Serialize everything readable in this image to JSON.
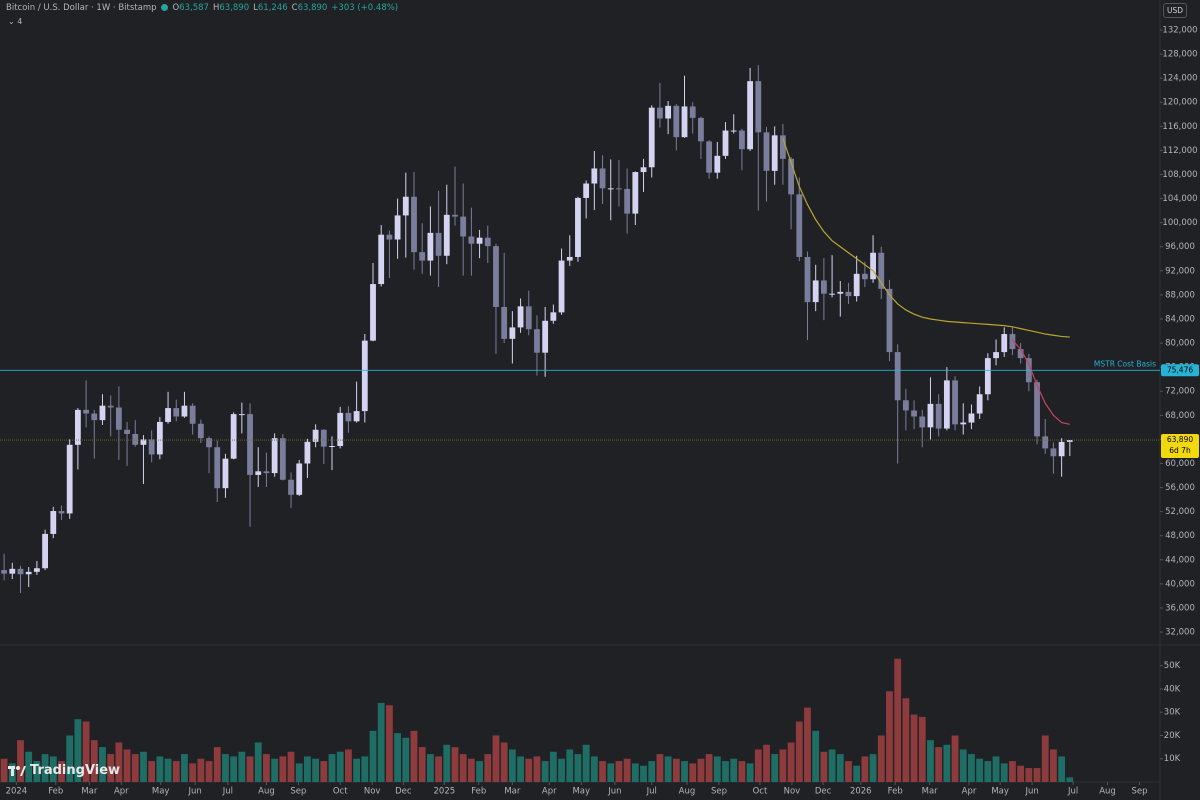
{
  "header": {
    "symbol": "Bitcoin / U.S. Dollar · 1W · Bitstamp",
    "ohlc": [
      {
        "key": "O",
        "value": "63,587"
      },
      {
        "key": "H",
        "value": "63,890"
      },
      {
        "key": "L",
        "value": "61,246"
      },
      {
        "key": "C",
        "value": "63,890"
      }
    ],
    "change": "+303 (+0.48%)",
    "indicator_count": "4",
    "currency": "USD",
    "brand": "TradingView"
  },
  "chart_data": {
    "type": "candlestick",
    "up_color": "#d4d4f2",
    "down_color": "#7b7d9c",
    "open": [
      42300,
      41700,
      42500,
      41600,
      42000,
      42600,
      48300,
      52100,
      51700,
      63100,
      68900,
      68300,
      67200,
      69600,
      69300,
      65600,
      64900,
      63100,
      64000,
      61500,
      66900,
      69200,
      67800,
      69600,
      66600,
      64200,
      62700,
      55900,
      60800,
      68200,
      68200,
      58100,
      58700,
      58400,
      64200,
      57300,
      54800,
      60000,
      63600,
      65600,
      62800,
      62900,
      68400,
      67000,
      68700,
      80400,
      89800,
      98000,
      97200,
      101200,
      104300,
      95100,
      93700,
      98300,
      94500,
      101300,
      101000,
      97700,
      96500,
      97500,
      96100,
      86000,
      80700,
      82600,
      86100,
      82300,
      78400,
      83700,
      85100,
      93700,
      94300,
      104100,
      106500,
      109000,
      105700,
      105700,
      105600,
      101500,
      108400,
      109200,
      119100,
      117300,
      119400,
      114200,
      119300,
      117400,
      113500,
      108300,
      111100,
      115300,
      115300,
      112200,
      123500,
      115000,
      108600,
      114500,
      110600,
      104700,
      94300,
      86800,
      90400,
      88200,
      88200,
      88500,
      87800,
      91500,
      90600,
      95000,
      89000,
      78500,
      70500,
      68800,
      67800,
      66000,
      69900,
      65800,
      73800,
      66500,
      66800,
      68300,
      71500,
      77500,
      78500,
      81500,
      79000,
      77500,
      73500,
      64500,
      62500,
      61200,
      63587
    ],
    "high": [
      45000,
      43500,
      43000,
      42800,
      43800,
      49000,
      52800,
      53000,
      64000,
      69200,
      73800,
      68900,
      71500,
      71300,
      72800,
      66900,
      67200,
      64700,
      65500,
      67700,
      71900,
      70600,
      71900,
      70000,
      67300,
      64500,
      63800,
      61600,
      68500,
      70100,
      70000,
      62700,
      61800,
      65000,
      64900,
      58500,
      60600,
      64100,
      66500,
      65700,
      64500,
      69400,
      69500,
      73600,
      81500,
      93300,
      99600,
      98700,
      104000,
      108300,
      108400,
      99900,
      102700,
      105300,
      106300,
      109300,
      106500,
      102500,
      98800,
      99500,
      96500,
      95000,
      85300,
      87400,
      88700,
      84600,
      86000,
      86400,
      95700,
      97900,
      104300,
      107000,
      111900,
      111200,
      110500,
      110400,
      109000,
      108500,
      110600,
      119500,
      123200,
      120200,
      119700,
      124400,
      120000,
      117600,
      113700,
      113400,
      116700,
      118000,
      115600,
      125700,
      126200,
      115900,
      116000,
      116400,
      110900,
      107500,
      95200,
      93000,
      94100,
      94600,
      90300,
      90000,
      94500,
      93500,
      97900,
      96000,
      90500,
      79800,
      72400,
      70500,
      68900,
      74300,
      71500,
      76000,
      74500,
      70000,
      69800,
      72800,
      78300,
      80600,
      82600,
      82700,
      80000,
      78200,
      73900,
      67400,
      63500,
      64200,
      63890
    ],
    "low": [
      40600,
      40800,
      38500,
      39500,
      41500,
      42300,
      47600,
      50600,
      50800,
      59000,
      66000,
      60800,
      66400,
      64500,
      60600,
      59600,
      62800,
      56600,
      60200,
      60700,
      66600,
      67000,
      67600,
      64800,
      63400,
      58400,
      53600,
      54300,
      60700,
      65000,
      49500,
      56100,
      56100,
      57800,
      57200,
      52600,
      54600,
      57600,
      62700,
      59900,
      58900,
      62500,
      65100,
      66800,
      66800,
      80300,
      89400,
      90800,
      94000,
      94200,
      92200,
      91500,
      91200,
      89300,
      93100,
      99500,
      91200,
      91200,
      94100,
      93300,
      78200,
      80000,
      76600,
      81700,
      81300,
      74600,
      74400,
      83200,
      84700,
      92800,
      93500,
      100700,
      102100,
      103100,
      100400,
      102700,
      98200,
      99600,
      105100,
      107500,
      115800,
      114700,
      112000,
      114100,
      114800,
      110600,
      107300,
      107300,
      110600,
      114800,
      108700,
      111900,
      102000,
      103500,
      106300,
      106300,
      98900,
      93600,
      80500,
      85300,
      83800,
      87600,
      84400,
      86500,
      86900,
      89300,
      90000,
      87300,
      77000,
      60000,
      65500,
      65700,
      62700,
      64000,
      64500,
      65500,
      65500,
      64800,
      65700,
      67400,
      70500,
      76300,
      77700,
      78000,
      76600,
      72000,
      63200,
      61600,
      58300,
      57800,
      61246
    ],
    "close": [
      41700,
      42500,
      41600,
      42000,
      42600,
      48300,
      52100,
      51700,
      63100,
      68900,
      68300,
      67200,
      69600,
      69300,
      65600,
      64900,
      63100,
      64000,
      61500,
      66900,
      69200,
      67800,
      69600,
      66600,
      64200,
      62700,
      55900,
      60800,
      68200,
      68200,
      58100,
      58700,
      58400,
      64200,
      57300,
      54800,
      60000,
      63600,
      65600,
      62800,
      62900,
      68400,
      67000,
      68700,
      80400,
      89800,
      98000,
      97200,
      101200,
      104300,
      95100,
      93700,
      98300,
      94500,
      101300,
      101000,
      97700,
      96500,
      97500,
      96100,
      86000,
      80700,
      82600,
      86100,
      82300,
      78400,
      83700,
      85100,
      93700,
      94300,
      104100,
      106500,
      109000,
      105700,
      105700,
      105600,
      101500,
      108400,
      109200,
      119100,
      117300,
      119400,
      114200,
      119300,
      117400,
      113500,
      108300,
      111100,
      115300,
      115300,
      112200,
      123500,
      115000,
      108600,
      114500,
      110600,
      104700,
      94300,
      86800,
      90400,
      88200,
      88200,
      88500,
      87800,
      91500,
      90600,
      95000,
      89000,
      78500,
      70500,
      68800,
      67800,
      66000,
      69900,
      65800,
      73800,
      66500,
      66800,
      68300,
      71500,
      77500,
      78500,
      81500,
      79000,
      77500,
      73500,
      64500,
      62500,
      61200,
      63587,
      63890
    ],
    "volume": {
      "up_color": "#1f6e66",
      "down_color": "#8e3b3d",
      "ylim": [
        0,
        58900
      ],
      "yticks": [
        {
          "value": 10000,
          "label": "10K"
        },
        {
          "value": 20000,
          "label": "20K"
        },
        {
          "value": 30000,
          "label": "30K"
        },
        {
          "value": 40000,
          "label": "40K"
        },
        {
          "value": 50000,
          "label": "50K"
        }
      ],
      "values": [
        10000,
        8000,
        18000,
        13000,
        9000,
        12000,
        11000,
        9000,
        20000,
        27000,
        26000,
        18000,
        15000,
        12000,
        17000,
        14000,
        12000,
        13000,
        9000,
        11000,
        10000,
        9000,
        12000,
        8000,
        10000,
        9000,
        15000,
        12000,
        11000,
        13000,
        11000,
        17000,
        12000,
        10000,
        11000,
        13000,
        8000,
        11000,
        10000,
        9000,
        12000,
        13000,
        14000,
        10000,
        11000,
        22000,
        34000,
        33000,
        21000,
        19000,
        22000,
        15000,
        12000,
        11000,
        16000,
        15000,
        12000,
        10000,
        9000,
        12000,
        20000,
        17000,
        14000,
        11000,
        10000,
        11000,
        9000,
        13000,
        10000,
        14000,
        12000,
        16000,
        11000,
        9000,
        8000,
        9000,
        10000,
        8000,
        7000,
        9000,
        12000,
        11000,
        10000,
        9000,
        8000,
        10000,
        12000,
        11000,
        9000,
        10000,
        9000,
        8000,
        14000,
        16000,
        12000,
        14000,
        17000,
        26000,
        32000,
        22000,
        13000,
        14000,
        12000,
        9000,
        7000,
        11000,
        12000,
        20000,
        39000,
        53000,
        36000,
        29000,
        28000,
        18000,
        15000,
        16000,
        20000,
        14000,
        12000,
        10000,
        9000,
        11000,
        8000,
        9000,
        7000,
        6000,
        6000,
        20000,
        14000,
        11000,
        2000
      ]
    },
    "lines": [
      {
        "color": "#b8a632",
        "x": [
          95,
          96,
          97,
          98,
          99,
          100,
          101,
          102,
          103,
          104,
          105,
          106,
          107,
          108,
          109,
          110,
          111,
          112,
          113,
          114,
          115,
          116,
          117,
          118,
          119,
          120,
          121,
          122,
          123,
          124,
          125,
          126,
          127,
          128,
          129,
          130
        ],
        "values": [
          114000,
          110000,
          106000,
          103000,
          100500,
          98500,
          97000,
          96000,
          95000,
          94000,
          93000,
          92000,
          90000,
          88000,
          86500,
          85500,
          84800,
          84300,
          84000,
          83800,
          83600,
          83500,
          83400,
          83300,
          83200,
          83100,
          83000,
          82900,
          82700,
          82400,
          82100,
          81800,
          81500,
          81300,
          81100,
          81000
        ]
      },
      {
        "color": "#c2455e",
        "x": [
          123,
          124,
          125,
          126,
          127,
          128,
          129,
          130
        ],
        "values": [
          80500,
          79000,
          76500,
          73000,
          70000,
          68000,
          66800,
          66500
        ]
      }
    ],
    "hlines": [
      {
        "value": 75476,
        "label": "MSTR Cost Basis",
        "tag": "75,476",
        "color": "#26b3d6"
      }
    ],
    "last_price": {
      "value": 63890,
      "tag": "63,890",
      "countdown": "6d 7h",
      "color": "#f2d90f",
      "line_color": "#6d6a2a"
    },
    "xlim": [
      -0.5,
      141
    ],
    "xticks": [
      {
        "value": 1.5,
        "label": "2024"
      },
      {
        "value": 6.3,
        "label": "Feb"
      },
      {
        "value": 10.4,
        "label": "Mar"
      },
      {
        "value": 14.3,
        "label": "Apr"
      },
      {
        "value": 19.1,
        "label": "May"
      },
      {
        "value": 23.3,
        "label": "Jun"
      },
      {
        "value": 27.3,
        "label": "Jul"
      },
      {
        "value": 32,
        "label": "Aug"
      },
      {
        "value": 35.9,
        "label": "Sep"
      },
      {
        "value": 41,
        "label": "Oct"
      },
      {
        "value": 44.9,
        "label": "Nov"
      },
      {
        "value": 48.7,
        "label": "Dec"
      },
      {
        "value": 53.7,
        "label": "2025"
      },
      {
        "value": 57.9,
        "label": "Feb"
      },
      {
        "value": 62,
        "label": "Mar"
      },
      {
        "value": 66.5,
        "label": "Apr"
      },
      {
        "value": 70.4,
        "label": "May"
      },
      {
        "value": 74.5,
        "label": "Jun"
      },
      {
        "value": 79,
        "label": "Jul"
      },
      {
        "value": 83.3,
        "label": "Aug"
      },
      {
        "value": 87.2,
        "label": "Sep"
      },
      {
        "value": 92.2,
        "label": "Oct"
      },
      {
        "value": 96.1,
        "label": "Nov"
      },
      {
        "value": 99.9,
        "label": "Dec"
      },
      {
        "value": 104.5,
        "label": "2026"
      },
      {
        "value": 108.7,
        "label": "Feb"
      },
      {
        "value": 112.9,
        "label": "Mar"
      },
      {
        "value": 117.7,
        "label": "Apr"
      },
      {
        "value": 121.5,
        "label": "May"
      },
      {
        "value": 125.4,
        "label": "Jun"
      },
      {
        "value": 130.4,
        "label": "Jul"
      },
      {
        "value": 134.6,
        "label": "Aug"
      },
      {
        "value": 138.5,
        "label": "Sep"
      }
    ],
    "ylim": [
      29850,
      136980
    ],
    "yticks": [
      {
        "value": 32000,
        "label": "32,000"
      },
      {
        "value": 36000,
        "label": "36,000"
      },
      {
        "value": 40000,
        "label": "40,000"
      },
      {
        "value": 44000,
        "label": "44,000"
      },
      {
        "value": 48000,
        "label": "48,000"
      },
      {
        "value": 52000,
        "label": "52,000"
      },
      {
        "value": 56000,
        "label": "56,000"
      },
      {
        "value": 60000,
        "label": "60,000"
      },
      {
        "value": 64000,
        "label": "64,000"
      },
      {
        "value": 68000,
        "label": "68,000"
      },
      {
        "value": 72000,
        "label": "72,000"
      },
      {
        "value": 76000,
        "label": "76,000"
      },
      {
        "value": 80000,
        "label": "80,000"
      },
      {
        "value": 84000,
        "label": "84,000"
      },
      {
        "value": 88000,
        "label": "88,000"
      },
      {
        "value": 92000,
        "label": "92,000"
      },
      {
        "value": 96000,
        "label": "96,000"
      },
      {
        "value": 100000,
        "label": "100,000"
      },
      {
        "value": 104000,
        "label": "104,000"
      },
      {
        "value": 108000,
        "label": "108,000"
      },
      {
        "value": 112000,
        "label": "112,000"
      },
      {
        "value": 116000,
        "label": "116,000"
      },
      {
        "value": 120000,
        "label": "120,000"
      },
      {
        "value": 124000,
        "label": "124,000"
      },
      {
        "value": 128000,
        "label": "128,000"
      },
      {
        "value": 132000,
        "label": "132,000"
      }
    ],
    "grid": false
  }
}
